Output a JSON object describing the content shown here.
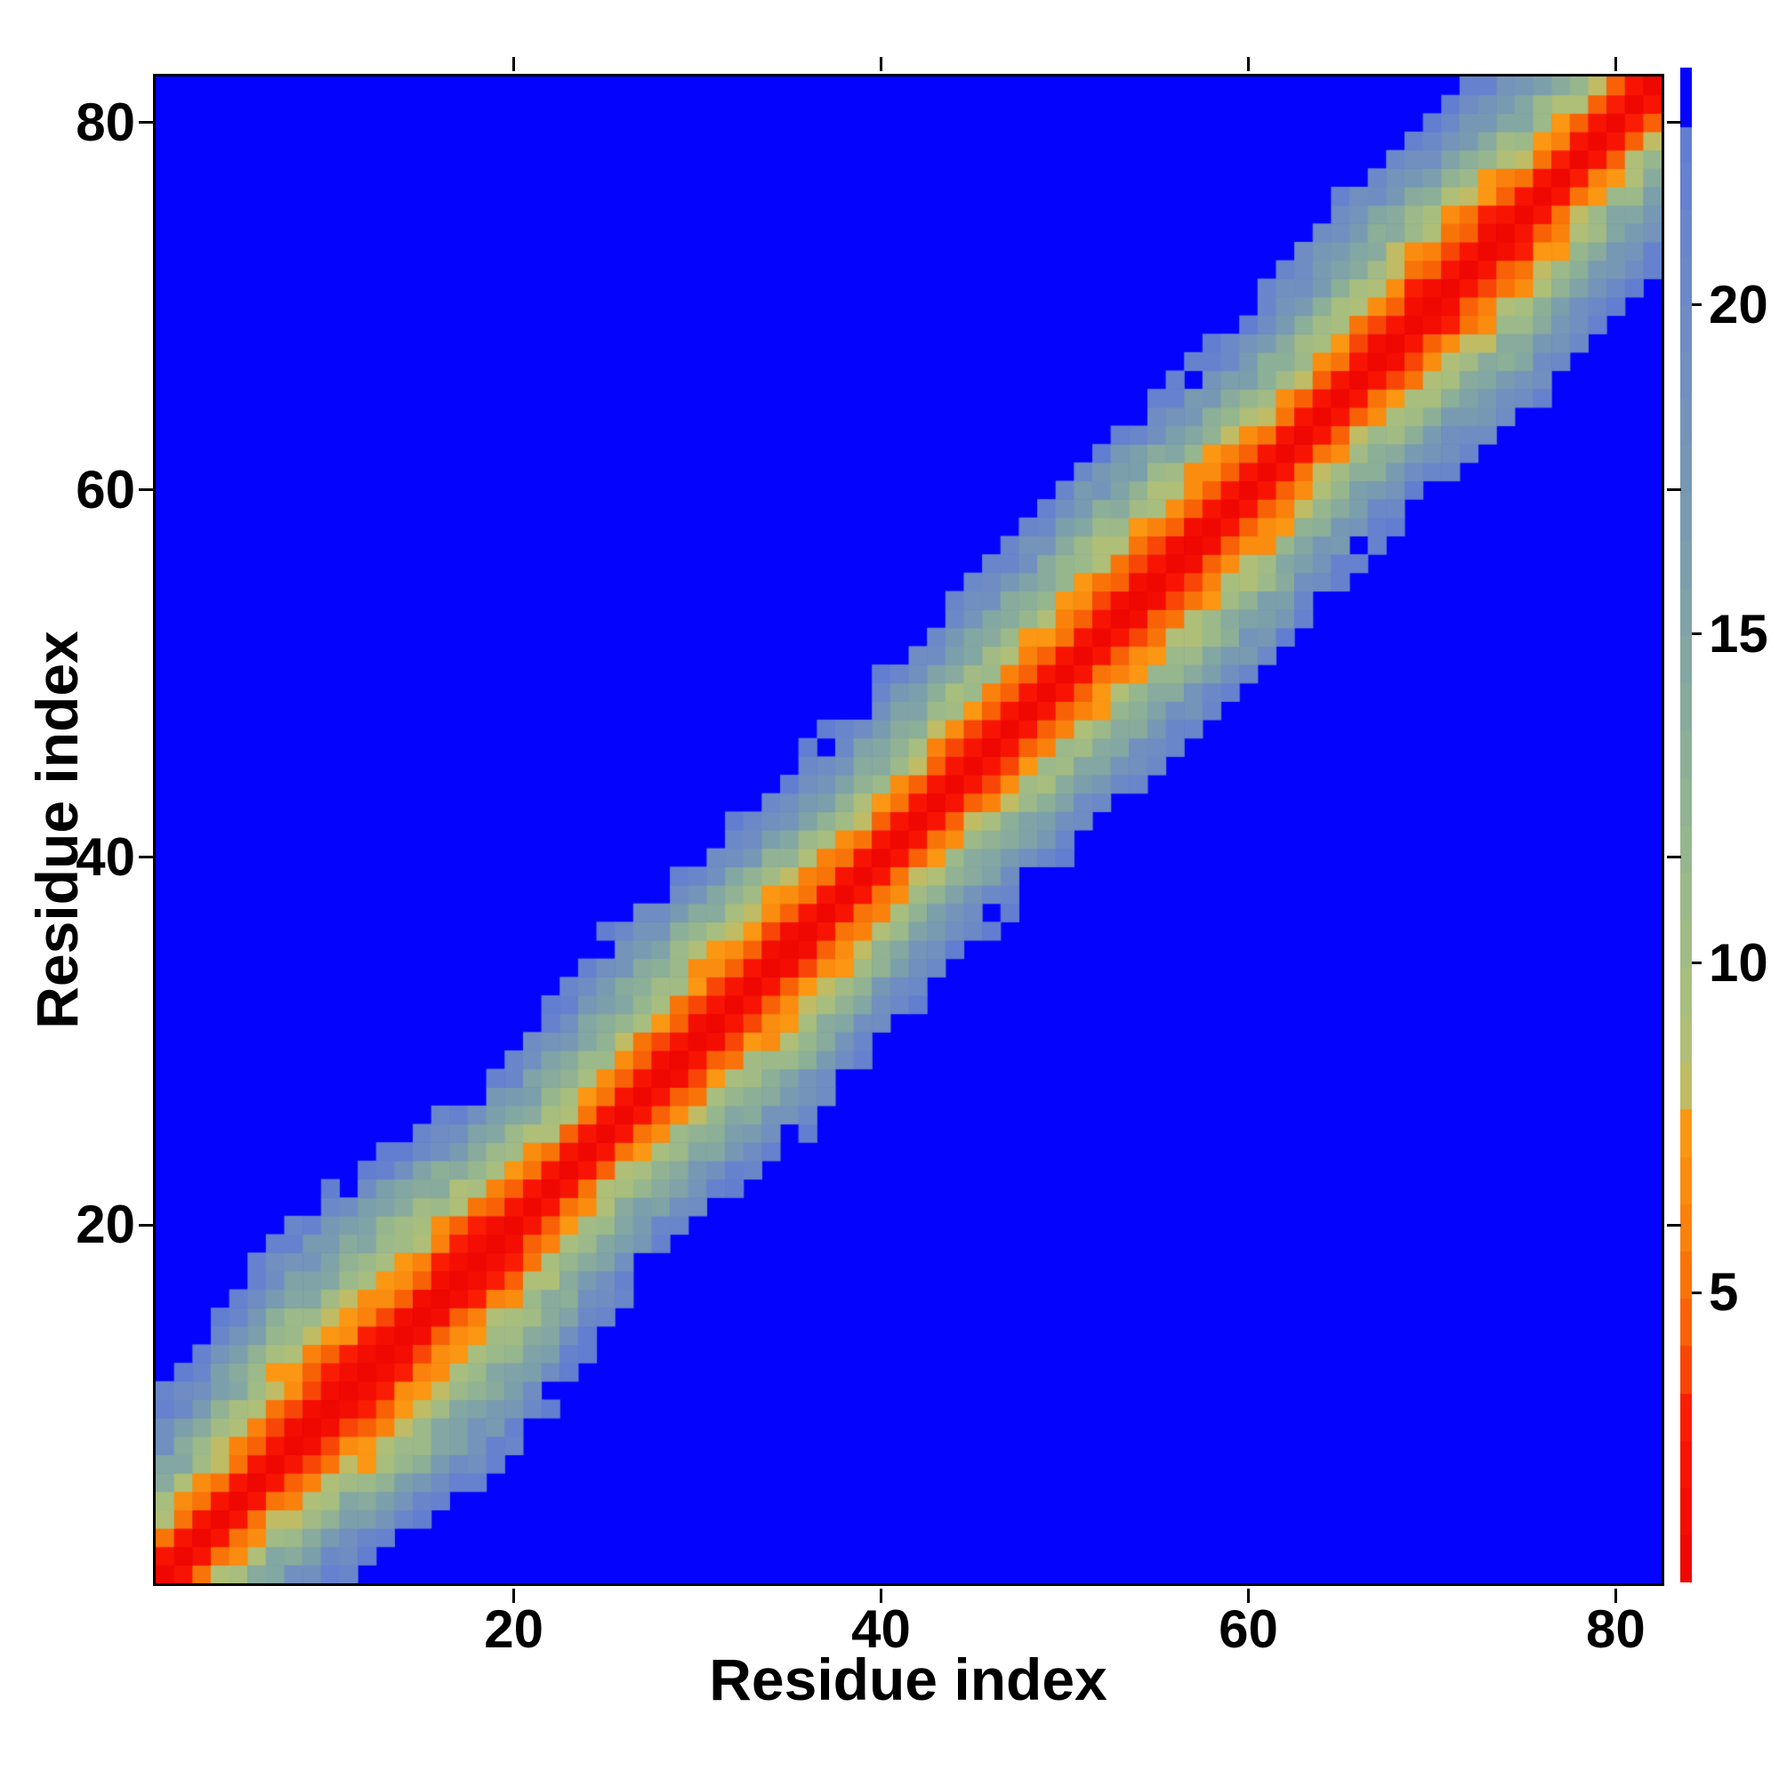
{
  "figure": {
    "background_color": "#ffffff",
    "title": ""
  },
  "chart_data": {
    "type": "heatmap",
    "title": "",
    "xlabel": "Residue index",
    "ylabel": "Residue index",
    "n_residues": 82,
    "axis_min": 0.5,
    "axis_max": 82.5,
    "x_ticks": [
      20,
      40,
      60,
      80
    ],
    "y_ticks": [
      20,
      40,
      60,
      80
    ],
    "grid": false,
    "legend_position": "right-colorbar",
    "colorbar": {
      "ticks": [
        5,
        10,
        15,
        20
      ],
      "value_min": 0.6,
      "value_max": 23.6,
      "n_levels": 32
    },
    "cap_value": 22.7,
    "cap_color": "#0404fe",
    "background_color": "#0404fe",
    "diagonal_color": "#f20d04",
    "colormap_stops": [
      [
        0.6,
        "#ed0400"
      ],
      [
        2.2,
        "#f81103"
      ],
      [
        3.4,
        "#fb2104"
      ],
      [
        3.9,
        "#f84c06"
      ],
      [
        5.0,
        "#f96f07"
      ],
      [
        6.2,
        "#fa860d"
      ],
      [
        7.8,
        "#fb9c14"
      ],
      [
        8.2,
        "#b6c171"
      ],
      [
        9.5,
        "#a9be7e"
      ],
      [
        11.0,
        "#9cb98a"
      ],
      [
        13.0,
        "#8db096"
      ],
      [
        15.0,
        "#81a5a5"
      ],
      [
        17.0,
        "#789ab2"
      ],
      [
        19.0,
        "#7190bf"
      ],
      [
        21.0,
        "#6a86ca"
      ],
      [
        22.7,
        "#617dd2"
      ]
    ],
    "distance_model": {
      "description": "Symmetric residue-residue distance map: d(i,j)=|p_i-p_j|+noise, capped at cap_value (rendered as background blue). p = cumulative sum of residue_step_lengths.",
      "residue_step_lengths": [
        2.6,
        2.6,
        2.6,
        2.6,
        2.6,
        2.6,
        1.85,
        1.85,
        1.8,
        1.9,
        1.85,
        1.8,
        1.9,
        1.85,
        1.85,
        1.8,
        1.9,
        1.85,
        1.85,
        2.5,
        2.45,
        2.55,
        2.5,
        2.4,
        2.55,
        2.5,
        2.1,
        2.05,
        2.15,
        2.1,
        2.0,
        2.15,
        2.1,
        2.05,
        2.1,
        2.45,
        2.4,
        2.5,
        2.45,
        2.4,
        2.5,
        2.45,
        2.4,
        2.3,
        2.25,
        2.35,
        2.3,
        2.25,
        2.35,
        2.3,
        2.25,
        2.05,
        2.0,
        2.1,
        2.05,
        2.0,
        2.1,
        2.05,
        2.0,
        2.5,
        2.45,
        2.55,
        2.5,
        2.45,
        2.55,
        2.0,
        1.95,
        2.05,
        2.0,
        1.95,
        2.05,
        2.0,
        1.95,
        2.0,
        2.55,
        2.5,
        2.6,
        2.55,
        2.5,
        2.6,
        2.55
      ],
      "pair_noise": {
        "amplitude": 1.7,
        "ramp_start_sep": 1,
        "ramp_full_sep": 4,
        "min_scale": 0.15,
        "hash": "frac(sin(i*12.9898 + j*78.233)*43758.5453)"
      },
      "min_distance": 0.6
    }
  }
}
